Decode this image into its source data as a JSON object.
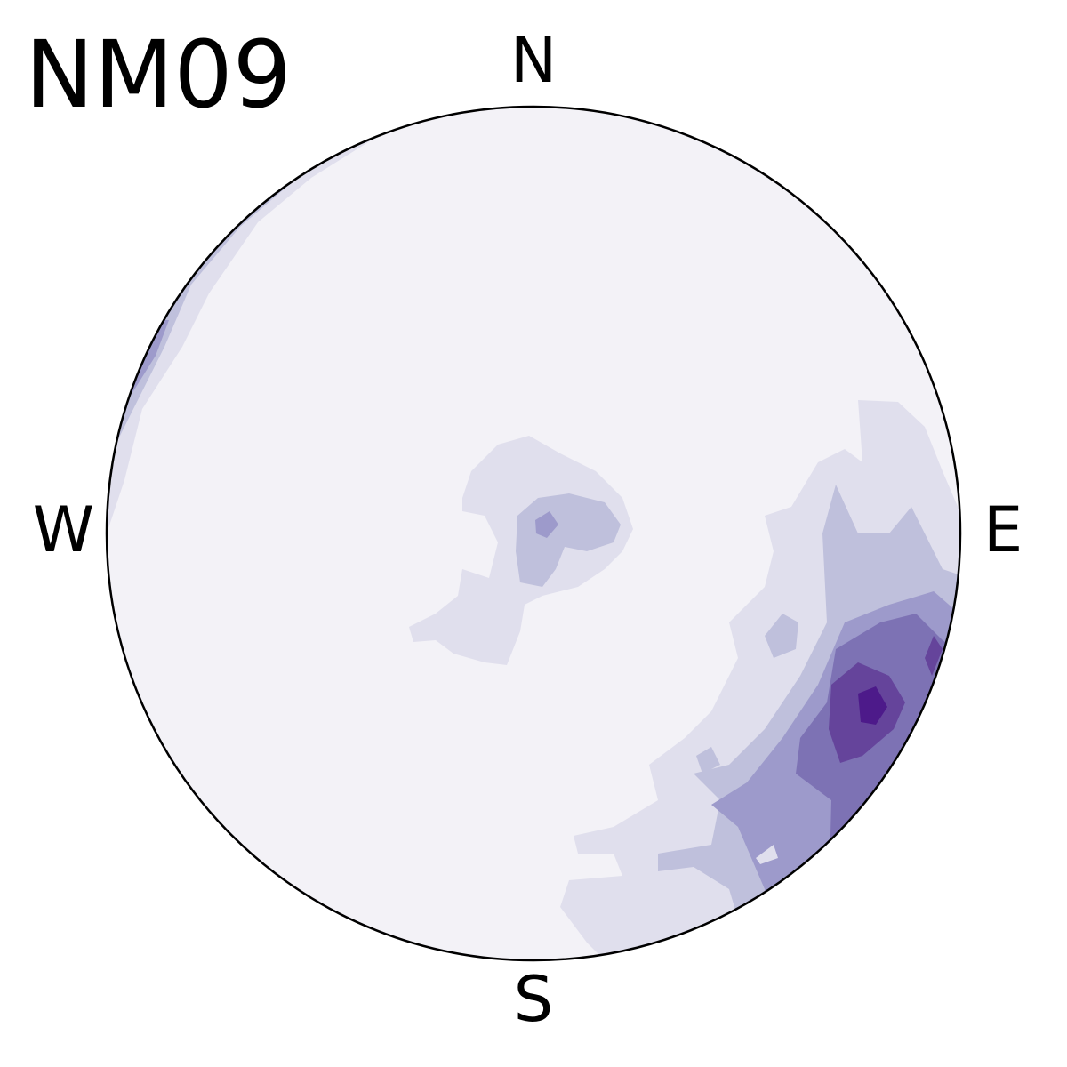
{
  "chart_data": {
    "type": "stereonet",
    "title": "NM09",
    "directions": {
      "north": "N",
      "east": "E",
      "south": "S",
      "west": "W"
    }
  }
}
